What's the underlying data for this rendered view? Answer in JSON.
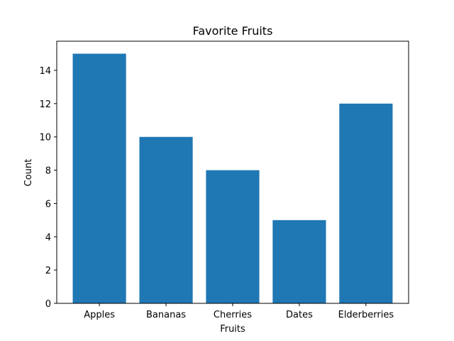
{
  "chart_data": {
    "type": "bar",
    "title": "Favorite Fruits",
    "x_label": "Fruits",
    "y_label": "Count",
    "categories": [
      "Apples",
      "Bananas",
      "Cherries",
      "Dates",
      "Elderberries"
    ],
    "values": [
      15,
      10,
      8,
      5,
      12
    ],
    "color": "#1f77b4",
    "ylim": [
      0,
      15.75
    ],
    "yticks": [
      0,
      2,
      4,
      6,
      8,
      10,
      12,
      14
    ],
    "grid": false
  }
}
